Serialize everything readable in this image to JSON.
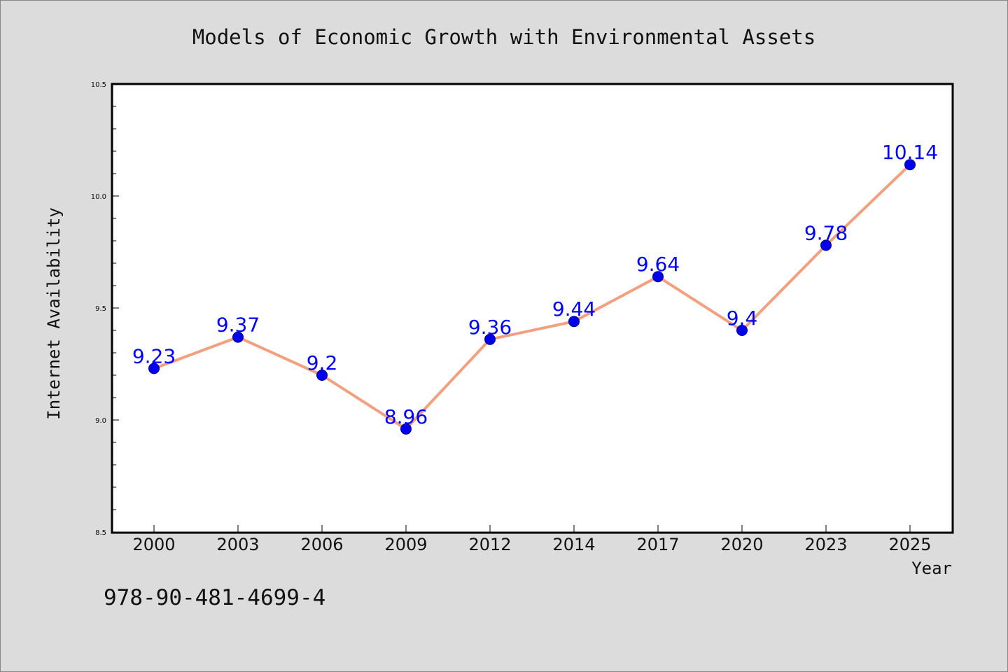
{
  "chart_data": {
    "type": "line",
    "title": "Models of Economic Growth with Environmental Assets",
    "xlabel": "Year",
    "ylabel": "Internet Availability",
    "categories": [
      "2000",
      "2003",
      "2006",
      "2009",
      "2012",
      "2014",
      "2017",
      "2020",
      "2023",
      "2025"
    ],
    "series": [
      {
        "values": [
          9.23,
          9.37,
          9.2,
          8.96,
          9.36,
          9.44,
          9.64,
          9.4,
          9.78,
          10.14
        ],
        "data_labels": [
          "9.23",
          "9.37",
          "9.2",
          "8.96",
          "9.36",
          "9.44",
          "9.64",
          "9.4",
          "9.78",
          "10.14"
        ]
      }
    ],
    "ylim": [
      8.5,
      10.5
    ],
    "y_ticks": [
      "8.5",
      "9.0",
      "9.5",
      "10.0",
      "10.5"
    ],
    "grid": false,
    "colors": {
      "line": "#f4a07e",
      "marker": "#0000ee",
      "label": "#0000ff",
      "background": "#dcdcdc",
      "plot_background": "#ffffff"
    }
  },
  "footnote": "978-90-481-4699-4"
}
